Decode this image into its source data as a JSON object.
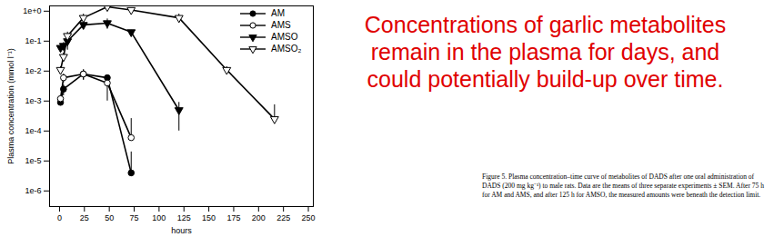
{
  "chart_data": {
    "type": "line",
    "x_label": "hours",
    "y_label": "Plasma concentration (mmol l⁻¹)",
    "log": "y",
    "grid": false,
    "legend": "top-right",
    "xlim": [
      -10,
      255
    ],
    "xticks": [
      0,
      25,
      50,
      75,
      100,
      125,
      150,
      175,
      200,
      225,
      250
    ],
    "ylim": [
      3e-07,
      1.5
    ],
    "yticks": [
      {
        "value": 1e-06,
        "label": "1e-6"
      },
      {
        "value": 1e-05,
        "label": "1e-5"
      },
      {
        "value": 0.0001,
        "label": "1e-4"
      },
      {
        "value": 0.001,
        "label": "1e-3"
      },
      {
        "value": 0.01,
        "label": "1e-2"
      },
      {
        "value": 0.1,
        "label": "1e-1"
      },
      {
        "value": 1,
        "label": "1e+0"
      }
    ],
    "series": [
      {
        "name": "AM",
        "color": "#000000",
        "marker": "circle",
        "x": [
          1,
          4,
          24,
          48,
          72
        ],
        "values": [
          0.0009,
          0.0025,
          0.008,
          0.006,
          4e-06
        ],
        "errors": [
          0.0002,
          0.001,
          0.003,
          0.001,
          1.6e-05
        ]
      },
      {
        "name": "AMS",
        "color": "#000000",
        "marker": "circle-open",
        "x": [
          1,
          4,
          24,
          48,
          72
        ],
        "values": [
          0.0012,
          0.006,
          0.008,
          0.004,
          6e-05
        ],
        "errors": [
          0.0003,
          0.002,
          0.003,
          0.003,
          0.0002
        ]
      },
      {
        "name": "AMSO",
        "color": "#000000",
        "marker": "triangle-down",
        "x": [
          1,
          4,
          8,
          24,
          48,
          72,
          120
        ],
        "values": [
          0.06,
          0.07,
          0.1,
          0.35,
          0.4,
          0.2,
          0.0005
        ],
        "errors": [
          0.01,
          0.02,
          0.05,
          0.1,
          0.15,
          0.03,
          0.0004
        ]
      },
      {
        "name": "AMSO₂",
        "color": "#000000",
        "marker": "triangle-down-open",
        "x": [
          1,
          4,
          8,
          24,
          48,
          72,
          120,
          168,
          216
        ],
        "values": [
          0.011,
          0.03,
          0.15,
          0.6,
          1.4,
          1.1,
          0.6,
          0.011,
          0.00025
        ],
        "errors": [
          0.003,
          0.01,
          0.05,
          0.2,
          0.3,
          0.1,
          0.2,
          0.003,
          0.0005
        ]
      }
    ],
    "annotation": "Concentrations of garlic metabolites\nremain in the plasma for days, and\ncould potentially build-up over time.",
    "caption": "Figure 5.   Plasma concentration–time curve of metabolites of DADS after one oral administration of DADS (200 mg kg⁻¹) to male rats. Data are the means of three separate experiments ± SEM. After 75 h for AM and AMS, and after 125 h for AMSO, the measured amounts were beneath the detection limit."
  }
}
